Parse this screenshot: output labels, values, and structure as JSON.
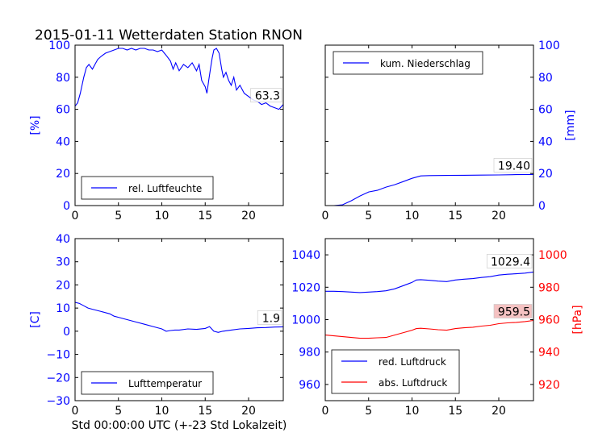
{
  "title": "2015-01-11 Wetterdaten Station RNON",
  "xlabel": "Std 00:00:00 UTC (+-23 Std Lokalzeit)",
  "chart_data": [
    {
      "type": "line",
      "panel": "top-left",
      "ylabel": "[%]",
      "xlim": [
        0,
        24
      ],
      "ylim": [
        0,
        100
      ],
      "xticks": [
        0,
        5,
        10,
        15,
        20
      ],
      "yticks": [
        0,
        20,
        40,
        60,
        80,
        100
      ],
      "legend_position": "lower-center",
      "annotation": "63.3",
      "series": [
        {
          "name": "rel. Luftfeuchte",
          "color": "#0000ff",
          "x": [
            0,
            0.3,
            0.6,
            1,
            1.3,
            1.6,
            2,
            2.3,
            2.6,
            3,
            3.5,
            4,
            4.5,
            5,
            5.5,
            6,
            6.5,
            7,
            7.5,
            8,
            8.5,
            9,
            9.5,
            10,
            10.3,
            10.6,
            11,
            11.3,
            11.6,
            12,
            12.5,
            13,
            13.5,
            14,
            14.3,
            14.6,
            15,
            15.2,
            15.4,
            15.6,
            15.8,
            16,
            16.3,
            16.6,
            16.9,
            17.1,
            17.4,
            17.7,
            18,
            18.3,
            18.6,
            19,
            19.5,
            20,
            20.5,
            21,
            21.5,
            22,
            22.5,
            23,
            23.5,
            24
          ],
          "values": [
            62,
            64,
            70,
            80,
            86,
            88,
            85,
            88,
            91,
            93,
            95,
            96,
            97,
            98,
            98,
            97,
            98,
            97,
            98,
            98,
            97,
            97,
            96,
            97,
            95,
            93,
            90,
            85,
            89,
            84,
            88,
            86,
            89,
            84,
            88,
            78,
            74,
            70,
            78,
            85,
            92,
            97,
            98,
            95,
            85,
            80,
            83,
            78,
            75,
            80,
            72,
            75,
            70,
            68,
            66,
            65,
            63,
            64,
            62,
            61,
            60,
            63
          ]
        }
      ]
    },
    {
      "type": "line",
      "panel": "top-right",
      "ylabel": "[mm]",
      "xlim": [
        0,
        24
      ],
      "ylim": [
        0,
        100
      ],
      "xticks": [
        0,
        5,
        10,
        15,
        20
      ],
      "yticks": [
        0,
        20,
        40,
        60,
        80,
        100
      ],
      "legend_position": "upper-center",
      "annotation": "19.40",
      "series": [
        {
          "name": "kum. Niederschlag",
          "color": "#0000ff",
          "x": [
            0,
            1,
            2,
            3,
            4,
            5,
            6,
            7,
            8,
            9,
            10,
            11,
            12,
            14,
            16,
            18,
            20,
            22,
            24
          ],
          "values": [
            0,
            0,
            0.5,
            3,
            6,
            8.5,
            9.5,
            11.5,
            13,
            15,
            17,
            18.5,
            18.7,
            18.8,
            18.9,
            19,
            19.1,
            19.3,
            19.4
          ]
        }
      ]
    },
    {
      "type": "line",
      "panel": "bottom-left",
      "ylabel": "[C]",
      "xlim": [
        0,
        24
      ],
      "ylim": [
        -30,
        40
      ],
      "xticks": [
        0,
        5,
        10,
        15,
        20
      ],
      "yticks": [
        -30,
        -20,
        -10,
        0,
        10,
        20,
        30,
        40
      ],
      "legend_position": "lower-center",
      "annotation": "1.9",
      "series": [
        {
          "name": "Lufttemperatur",
          "color": "#0000ff",
          "x": [
            0,
            0.5,
            1,
            1.5,
            2,
            3,
            4,
            4.5,
            5,
            6,
            7,
            8,
            9,
            10,
            10.5,
            11,
            11.5,
            12,
            13,
            14,
            15,
            15.5,
            16,
            16.5,
            17,
            18,
            19,
            20,
            21,
            22,
            23,
            24
          ],
          "values": [
            12.5,
            12,
            11,
            10,
            9.5,
            8.5,
            7.5,
            6.5,
            6,
            5,
            4,
            3,
            2,
            1,
            0,
            0.3,
            0.5,
            0.5,
            1,
            0.8,
            1.2,
            2,
            0,
            -0.5,
            0,
            0.5,
            1,
            1.2,
            1.5,
            1.6,
            1.8,
            1.9
          ]
        }
      ]
    },
    {
      "type": "line",
      "panel": "bottom-right",
      "ylabel": "",
      "ylabel_right": "[hPa]",
      "xlim": [
        0,
        24
      ],
      "ylim": [
        950,
        1050
      ],
      "ylim_right": [
        910,
        1010
      ],
      "xticks": [
        0,
        5,
        10,
        15,
        20
      ],
      "yticks": [
        960,
        980,
        1000,
        1020,
        1040
      ],
      "yticks_right": [
        920,
        940,
        960,
        980,
        1000
      ],
      "legend_position": "lower-left",
      "annotation": "1029.4",
      "annotation2": "959.5",
      "series": [
        {
          "name": "red. Luftdruck",
          "color": "#0000ff",
          "x": [
            0,
            1,
            2,
            3,
            4,
            5,
            6,
            7,
            8,
            9,
            10,
            10.5,
            11,
            12,
            13,
            14,
            15,
            16,
            17,
            18,
            19,
            20,
            21,
            22,
            23,
            24
          ],
          "values": [
            1017.5,
            1017.5,
            1017.3,
            1017,
            1016.7,
            1017,
            1017.3,
            1017.8,
            1019,
            1021,
            1023,
            1024.5,
            1024.7,
            1024.3,
            1023.8,
            1023.5,
            1024.5,
            1025,
            1025.3,
            1026,
            1026.5,
            1027.5,
            1028,
            1028.3,
            1028.7,
            1029.4
          ]
        },
        {
          "name": "abs. Luftdruck",
          "color": "#ff0000",
          "x": [
            0,
            1,
            2,
            3,
            4,
            5,
            6,
            7,
            8,
            9,
            10,
            10.5,
            11,
            12,
            13,
            14,
            15,
            16,
            17,
            18,
            19,
            20,
            21,
            22,
            23,
            24
          ],
          "values": [
            950.5,
            950,
            949.5,
            949,
            948.5,
            948.5,
            948.8,
            949,
            950.5,
            952,
            953.5,
            954.5,
            954.7,
            954.3,
            953.8,
            953.5,
            954.5,
            955,
            955.3,
            956,
            956.5,
            957.5,
            958,
            958.3,
            958.8,
            959.5
          ]
        }
      ]
    }
  ]
}
